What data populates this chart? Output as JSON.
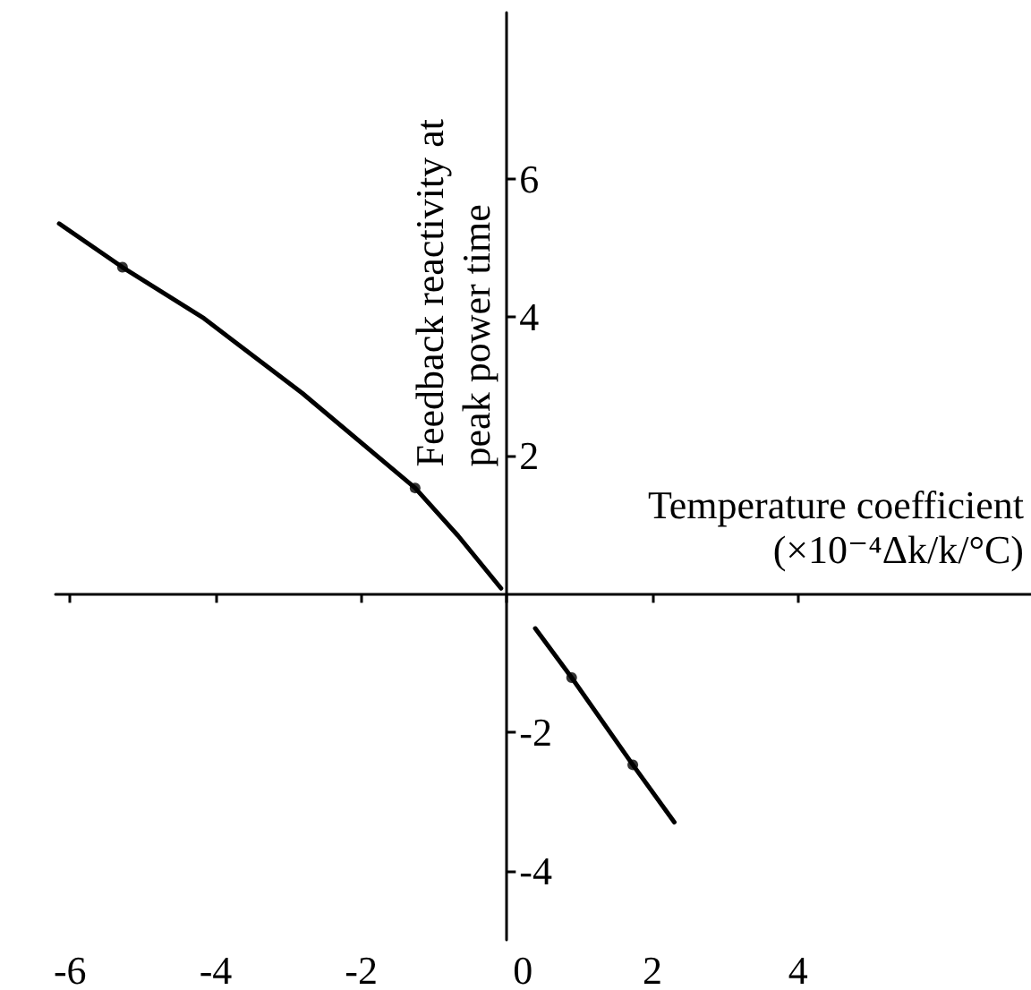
{
  "chart_data": {
    "type": "line",
    "xlabel": "Temperature coefficient\n(×10⁻⁴Δk/k/°C)",
    "ylabel": "Feedback reactivity at\npeak power time",
    "xlim": [
      -6.2,
      7.2
    ],
    "ylim": [
      -5,
      8.4
    ],
    "xticks": [
      -6,
      -4,
      -2,
      0,
      2,
      4
    ],
    "yticks": [
      -4,
      -2,
      2,
      4,
      6
    ],
    "marker": "none",
    "line_style": "solid",
    "series": [
      {
        "type": "line",
        "color": "#000000",
        "x": [
          -6.15,
          -5.28,
          -4.16,
          -2.81,
          -1.26,
          -0.67,
          -0.08
        ],
        "values": [
          5.35,
          4.72,
          3.98,
          2.9,
          1.53,
          0.84,
          0.08
        ]
      },
      {
        "type": "line",
        "color": "#000000",
        "x": [
          0.39,
          0.89,
          1.73,
          2.3
        ],
        "values": [
          -0.5,
          -1.21,
          -2.47,
          -3.3
        ]
      },
      {
        "type": "scatter",
        "marker": "circle",
        "color": "#000000",
        "x": [
          -5.28,
          -1.26,
          0.89,
          1.73
        ],
        "values": [
          4.72,
          1.53,
          -1.21,
          -2.47
        ]
      }
    ]
  }
}
